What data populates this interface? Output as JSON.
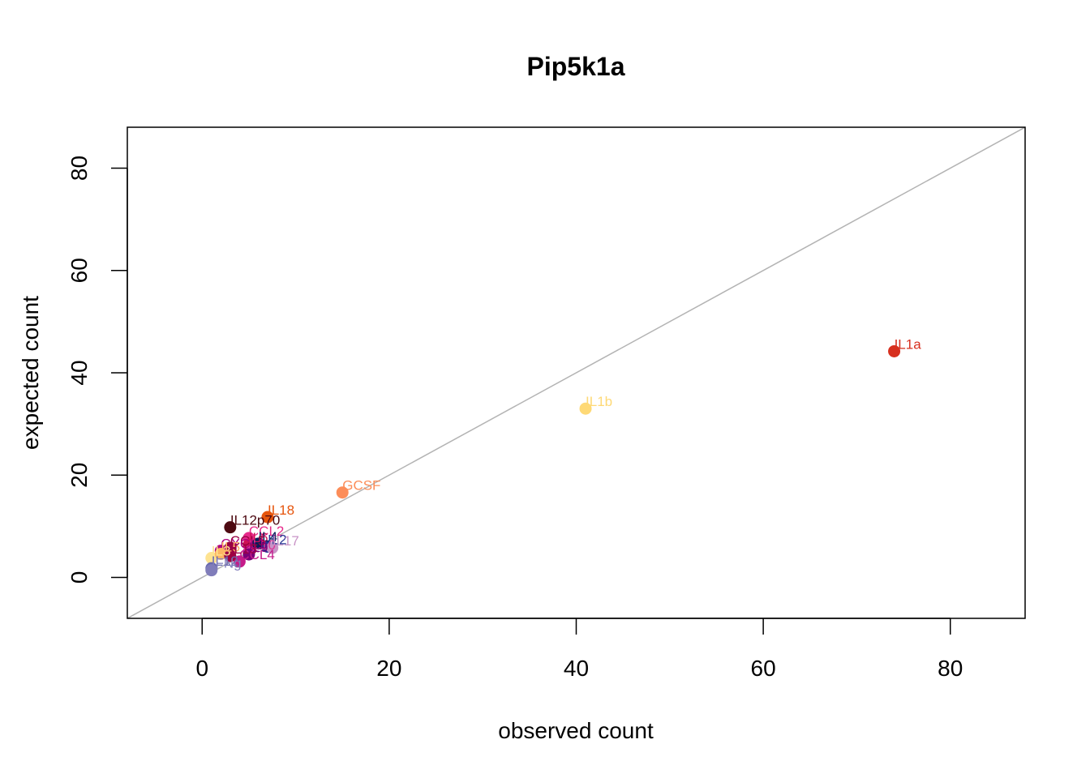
{
  "chart_data": {
    "type": "scatter",
    "title": "Pip5k1a",
    "xlabel": "observed count",
    "ylabel": "expected count",
    "xlim": [
      -8,
      88
    ],
    "ylim": [
      -8,
      88
    ],
    "xticks": [
      0,
      20,
      40,
      60,
      80
    ],
    "yticks": [
      0,
      20,
      40,
      60,
      80
    ],
    "grid": false,
    "reference_line": "y = x",
    "reference_line_color": "#b3b3b3",
    "points": [
      {
        "label": "IL1a",
        "x": 74,
        "y": 44.2,
        "color": "#d7301f"
      },
      {
        "label": "IL1b",
        "x": 41,
        "y": 33,
        "color": "#fed976"
      },
      {
        "label": "GCSF",
        "x": 15,
        "y": 16.6,
        "color": "#fc8d59"
      },
      {
        "label": "IL18",
        "x": 7,
        "y": 11.8,
        "color": "#e6550d"
      },
      {
        "label": "IL12p70",
        "x": 3,
        "y": 9.8,
        "color": "#4d0a12"
      },
      {
        "label": "CCL2",
        "x": 5,
        "y": 7.7,
        "color": "#e7298a"
      },
      {
        "label": "IL6",
        "x": 5,
        "y": 6.4,
        "color": "#ce1256"
      },
      {
        "label": "IL4",
        "x": 6,
        "y": 6.6,
        "color": "#081d58"
      },
      {
        "label": "IL2",
        "x": 7,
        "y": 6.0,
        "color": "#253494"
      },
      {
        "label": "IL10",
        "x": 5,
        "y": 5.0,
        "color": "#dd3497"
      },
      {
        "label": "CCL4",
        "x": 4,
        "y": 3.1,
        "color": "#c51b8a"
      },
      {
        "label": "CCL5",
        "x": 3,
        "y": 5.8,
        "color": "#980043"
      },
      {
        "label": "CXCL1",
        "x": 2,
        "y": 5.2,
        "color": "#ae017e"
      },
      {
        "label": "IL17",
        "x": 7.5,
        "y": 5.8,
        "color": "#c994c7"
      },
      {
        "label": "IL9",
        "x": 5,
        "y": 4.5,
        "color": "#7a0177"
      },
      {
        "label": "IL3",
        "x": 1,
        "y": 3.8,
        "color": "#fee391"
      },
      {
        "label": "IL5",
        "x": 2,
        "y": 4.6,
        "color": "#fdb863"
      },
      {
        "label": "IL13",
        "x": 3,
        "y": 4.2,
        "color": "#9e0142"
      },
      {
        "label": "IL12",
        "x": 1,
        "y": 1.8,
        "color": "#6a6aad"
      },
      {
        "label": "IFNg",
        "x": 1,
        "y": 1.4,
        "color": "#807dba"
      }
    ]
  }
}
